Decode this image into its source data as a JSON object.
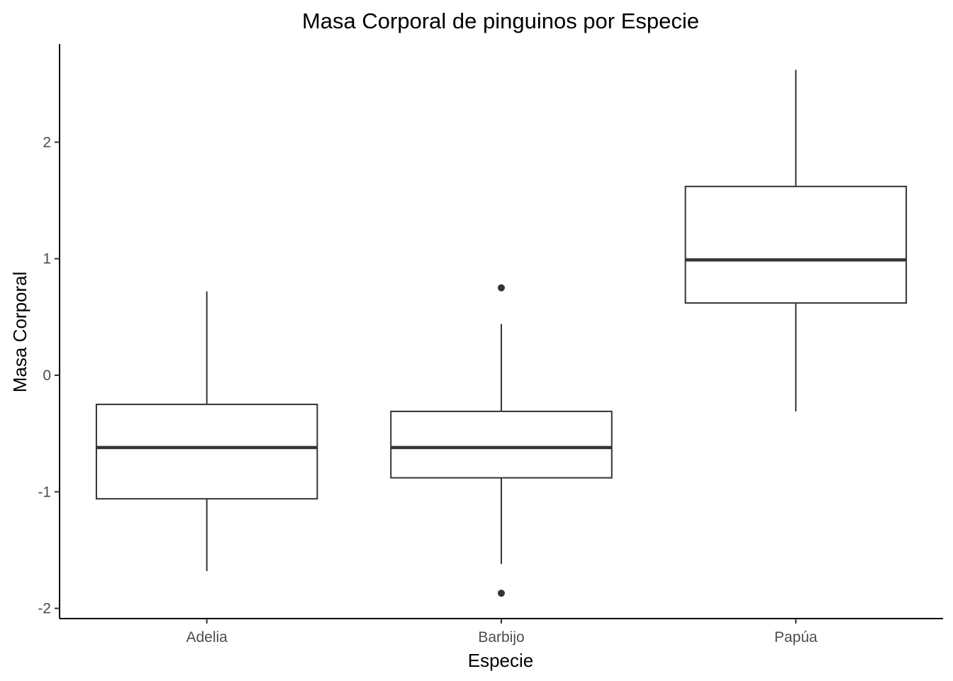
{
  "chart_data": {
    "type": "boxplot",
    "title": "Masa Corporal de pinguinos por Especie",
    "xlabel": "Especie",
    "ylabel": "Masa Corporal",
    "categories": [
      "Adelia",
      "Barbijo",
      "Papúa"
    ],
    "ylim": [
      -2.1,
      2.65
    ],
    "yticks": [
      -2,
      -1,
      0,
      1,
      2
    ],
    "ytick_labels": [
      "-2",
      "-1",
      "0",
      "1",
      "2"
    ],
    "grid": false,
    "legend": "none",
    "boxes": [
      {
        "category": "Adelia",
        "whisker_low": -1.68,
        "q1": -1.06,
        "median": -0.62,
        "q3": -0.25,
        "whisker_high": 0.72,
        "outliers": []
      },
      {
        "category": "Barbijo",
        "whisker_low": -1.62,
        "q1": -0.88,
        "median": -0.62,
        "q3": -0.31,
        "whisker_high": 0.44,
        "outliers": [
          0.75,
          -1.87
        ]
      },
      {
        "category": "Papúa",
        "whisker_low": -0.31,
        "q1": 0.62,
        "median": 0.99,
        "q3": 1.62,
        "whisker_high": 2.62,
        "outliers": []
      }
    ],
    "colors": {
      "box_fill": "#ffffff",
      "box_stroke": "#333333",
      "axis": "#000000",
      "tick_text": "#4d4d4d"
    }
  }
}
